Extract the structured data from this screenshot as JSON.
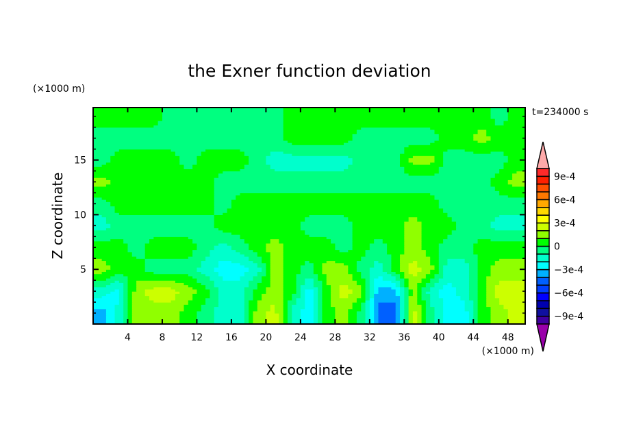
{
  "chart_data": {
    "type": "heatmap",
    "subtype": "filled-contour",
    "title": "the Exner function deviation",
    "xlabel": "X coordinate",
    "ylabel": "Z coordinate",
    "x_unit_label": "(×1000 m)",
    "y_unit_label": "(×1000 m)",
    "time_label": "t=234000 s",
    "xlim": [
      0,
      50
    ],
    "ylim": [
      0,
      19.8
    ],
    "x_ticks": [
      4,
      8,
      12,
      16,
      20,
      24,
      28,
      32,
      36,
      40,
      44,
      48
    ],
    "y_ticks": [
      5,
      10,
      15
    ],
    "x_centers": [
      1,
      3,
      5,
      7,
      9,
      11,
      13,
      15,
      17,
      19,
      21,
      23,
      25,
      27,
      29,
      31,
      33,
      35,
      37,
      39,
      41,
      43,
      45,
      47,
      49
    ],
    "z_centers": [
      19,
      17,
      15,
      13,
      11,
      9,
      7,
      5,
      3,
      1
    ],
    "values": [
      [
        5e-05,
        5e-05,
        5e-05,
        5e-05,
        -5e-05,
        -5e-05,
        -5e-05,
        -5e-05,
        -5e-05,
        -5e-05,
        -5e-05,
        5e-05,
        5e-05,
        5e-05,
        5e-05,
        5e-05,
        5e-05,
        5e-05,
        5e-05,
        5e-05,
        5e-05,
        5e-05,
        5e-05,
        -5e-05,
        5e-05
      ],
      [
        -5e-05,
        -5e-05,
        -5e-05,
        -5e-05,
        -5e-05,
        -5e-05,
        -5e-05,
        -5e-05,
        -5e-05,
        -5e-05,
        -5e-05,
        5e-05,
        5e-05,
        5e-05,
        5e-05,
        -5e-05,
        -5e-05,
        -5e-05,
        -5e-05,
        -5e-05,
        5e-05,
        5e-05,
        0.00015,
        5e-05,
        5e-05
      ],
      [
        -5e-05,
        5e-05,
        5e-05,
        5e-05,
        5e-05,
        -5e-05,
        5e-05,
        5e-05,
        5e-05,
        -5e-05,
        -0.00015,
        -0.00015,
        -0.00015,
        -0.00015,
        -0.00015,
        -5e-05,
        -5e-05,
        -5e-05,
        0.00015,
        0.00015,
        -5e-05,
        -5e-05,
        -5e-05,
        -5e-05,
        5e-05
      ],
      [
        0.00015,
        5e-05,
        5e-05,
        5e-05,
        5e-05,
        5e-05,
        5e-05,
        -5e-05,
        -5e-05,
        -5e-05,
        -5e-05,
        -5e-05,
        -5e-05,
        -5e-05,
        -5e-05,
        -5e-05,
        -5e-05,
        -5e-05,
        -5e-05,
        -5e-05,
        -5e-05,
        -5e-05,
        -5e-05,
        5e-05,
        0.00015
      ],
      [
        -5e-05,
        5e-05,
        5e-05,
        5e-05,
        5e-05,
        5e-05,
        5e-05,
        -5e-05,
        5e-05,
        5e-05,
        5e-05,
        5e-05,
        5e-05,
        5e-05,
        5e-05,
        5e-05,
        5e-05,
        5e-05,
        5e-05,
        5e-05,
        -5e-05,
        -5e-05,
        -5e-05,
        -5e-05,
        -5e-05
      ],
      [
        -0.00015,
        -5e-05,
        -5e-05,
        -5e-05,
        -5e-05,
        -5e-05,
        -5e-05,
        5e-05,
        5e-05,
        5e-05,
        5e-05,
        5e-05,
        -5e-05,
        -5e-05,
        -5e-05,
        5e-05,
        5e-05,
        5e-05,
        0.00015,
        5e-05,
        5e-05,
        -5e-05,
        -5e-05,
        -0.00015,
        -0.00015
      ],
      [
        5e-05,
        5e-05,
        -5e-05,
        5e-05,
        5e-05,
        5e-05,
        -5e-05,
        -0.00015,
        -5e-05,
        5e-05,
        0.00015,
        5e-05,
        5e-05,
        5e-05,
        -5e-05,
        5e-05,
        -5e-05,
        5e-05,
        0.00015,
        5e-05,
        -5e-05,
        -5e-05,
        5e-05,
        5e-05,
        5e-05
      ],
      [
        0.00015,
        5e-05,
        5e-05,
        -5e-05,
        -5e-05,
        -5e-05,
        -0.00015,
        -0.00025,
        -0.00025,
        -0.00015,
        0.00015,
        5e-05,
        -5e-05,
        0.00015,
        0.00015,
        -5e-05,
        -0.00015,
        5e-05,
        0.00025,
        0.00015,
        -0.00015,
        -0.00015,
        5e-05,
        0.00015,
        0.00015
      ],
      [
        -0.00015,
        -0.00025,
        0.00015,
        0.00025,
        0.00025,
        0.00015,
        5e-05,
        -0.00015,
        -0.00015,
        5e-05,
        0.00015,
        5e-05,
        -0.00025,
        5e-05,
        0.00025,
        0.00015,
        -0.00035,
        -0.00035,
        0.00015,
        -0.00015,
        -0.00025,
        -0.00015,
        5e-05,
        0.00025,
        0.00025
      ],
      [
        -0.00035,
        -0.00015,
        0.00015,
        0.00015,
        0.00015,
        5e-05,
        -5e-05,
        -0.00015,
        -0.00015,
        0.00015,
        0.00025,
        -0.00015,
        -0.00025,
        5e-05,
        0.00015,
        -5e-05,
        -0.00045,
        -0.00045,
        0.00025,
        -5e-05,
        -0.00025,
        -0.00025,
        5e-05,
        0.00015,
        0.00025
      ]
    ],
    "colorbar": {
      "levels": [
        -0.001,
        -0.0009,
        -0.0008,
        -0.0007,
        -0.0006,
        -0.0005,
        -0.0004,
        -0.0003,
        -0.0002,
        -0.0001,
        0,
        0.0001,
        0.0002,
        0.0003,
        0.0004,
        0.0005,
        0.0006,
        0.0007,
        0.0008,
        0.0009,
        0.001
      ],
      "colors": [
        "#4000a0",
        "#1010a0",
        "#0000b0",
        "#0000ff",
        "#0040ff",
        "#0060ff",
        "#00b0ff",
        "#00ffff",
        "#00ffcc",
        "#00ff80",
        "#00ff00",
        "#90ff00",
        "#ccff00",
        "#ffff00",
        "#ffd800",
        "#ffa800",
        "#ff7800",
        "#ff5000",
        "#ff2000",
        "#ff2a2a"
      ],
      "extend_low_color": "#9900aa",
      "extend_high_color": "#ffaaaa",
      "tick_labels": [
        {
          "value": 0.0009,
          "label": "9e-4"
        },
        {
          "value": 0.0006,
          "label": "6e-4"
        },
        {
          "value": 0.0003,
          "label": "3e-4"
        },
        {
          "value": 0,
          "label": "0"
        },
        {
          "value": -0.0003,
          "label": "−3e-4"
        },
        {
          "value": -0.0006,
          "label": "−6e-4"
        },
        {
          "value": -0.0009,
          "label": "−9e-4"
        }
      ]
    },
    "grid": false
  }
}
